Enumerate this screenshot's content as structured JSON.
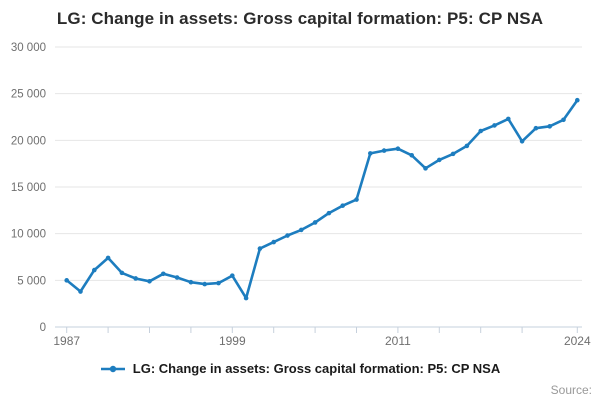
{
  "title": "LG: Change in assets: Gross capital formation: P5: CP NSA",
  "legend": {
    "label": "LG: Change in assets: Gross capital formation: P5: CP NSA"
  },
  "source_label": "Source:",
  "colors": {
    "line": "#1d7dbf",
    "grid": "#e6e6e6",
    "axis": "#c6d0dc",
    "tick_label": "#6f6f6f",
    "title": "#2b2b2b",
    "legend_text": "#1a1a1a",
    "source": "#999999"
  },
  "chart_data": {
    "type": "line",
    "title": "LG: Change in assets: Gross capital formation: P5: CP NSA",
    "xlabel": "",
    "ylabel": "",
    "ylim": [
      0,
      30000
    ],
    "grid": "horizontal",
    "legend_position": "bottom",
    "x": [
      1987,
      1988,
      1989,
      1990,
      1991,
      1992,
      1993,
      1994,
      1995,
      1996,
      1997,
      1998,
      1999,
      2000,
      2001,
      2002,
      2003,
      2004,
      2005,
      2006,
      2007,
      2008,
      2009,
      2010,
      2011,
      2012,
      2013,
      2014,
      2015,
      2016,
      2017,
      2018,
      2019,
      2020,
      2021,
      2022,
      2023,
      2024
    ],
    "series": [
      {
        "name": "LG: Change in assets: Gross capital formation: P5: CP NSA",
        "values": [
          5000,
          3800,
          6100,
          7400,
          5800,
          5200,
          4900,
          5700,
          5300,
          4800,
          4600,
          4700,
          5500,
          3100,
          8400,
          9100,
          9800,
          10400,
          11200,
          12200,
          13000,
          13650,
          18600,
          18900,
          19100,
          18400,
          17000,
          17900,
          18550,
          19400,
          21000,
          21600,
          22300,
          19900,
          21300,
          21500,
          22200,
          24300
        ]
      }
    ],
    "y_ticks": [
      0,
      5000,
      10000,
      15000,
      20000,
      25000,
      30000
    ],
    "y_tick_labels": [
      "0",
      "5 000",
      "10 000",
      "15 000",
      "20 000",
      "25 000",
      "30 000"
    ],
    "x_tick_years": [
      1987,
      1990,
      1993,
      1996,
      1999,
      2002,
      2005,
      2008,
      2011,
      2014,
      2017,
      2020,
      2024
    ],
    "x_label_years": [
      "1987",
      "1999",
      "2011",
      "2024"
    ]
  }
}
